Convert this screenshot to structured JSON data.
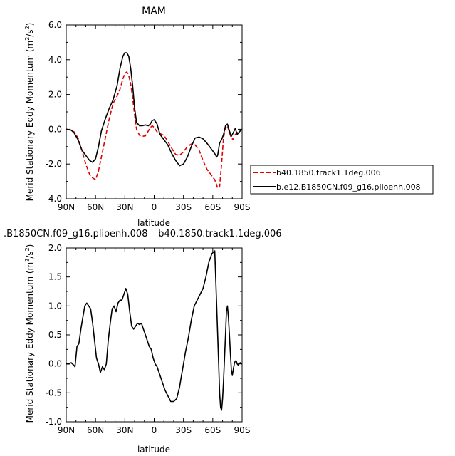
{
  "chart_data": [
    {
      "type": "line",
      "title": "MAM",
      "xlabel": "latitude",
      "ylabel": "Merid Stationary Eddy Momentum (m²/s²)",
      "ylabel_text": "Merid Stationary Eddy Momentum (m",
      "ylabel_unit_close": "/s",
      "xlim": [
        90,
        -90
      ],
      "ylim": [
        -4,
        6
      ],
      "x_tick_values": [
        90,
        60,
        30,
        0,
        -30,
        -60,
        -90
      ],
      "x_tick_labels": [
        "90N",
        "60N",
        "30N",
        "0",
        "30S",
        "60S",
        "90S"
      ],
      "y_tick_values": [
        -4,
        -2,
        0,
        2,
        4,
        6
      ],
      "y_tick_labels": [
        "-4.0",
        "-2.0",
        "0.0",
        "2.0",
        "4.0",
        "6.0"
      ],
      "legend_position": "right",
      "series": [
        {
          "name": "b40.1850.track1.1deg.006",
          "color": "#e00000",
          "dash": "dashed",
          "x": [
            90,
            85,
            82,
            78,
            74,
            70,
            66,
            63,
            60,
            57,
            54,
            50,
            46,
            42,
            38,
            35,
            32,
            30,
            28,
            26,
            24,
            22,
            20,
            18,
            15,
            12,
            9,
            6,
            4,
            2,
            0,
            -3,
            -6,
            -10,
            -14,
            -18,
            -22,
            -26,
            -30,
            -34,
            -38,
            -42,
            -46,
            -50,
            -54,
            -58,
            -62,
            -64,
            -65,
            -67,
            -69,
            -71,
            -73,
            -75,
            -77,
            -79,
            -81,
            -83,
            -85,
            -88,
            -90
          ],
          "y": [
            0,
            -0.05,
            -0.15,
            -0.5,
            -1.2,
            -2.0,
            -2.6,
            -2.8,
            -2.9,
            -2.4,
            -1.6,
            -0.5,
            0.6,
            1.5,
            1.9,
            2.3,
            2.9,
            3.2,
            3.3,
            3.1,
            2.6,
            1.8,
            0.8,
            0.0,
            -0.35,
            -0.4,
            -0.38,
            -0.1,
            0.1,
            0.2,
            0.1,
            -0.15,
            -0.25,
            -0.35,
            -0.7,
            -1.1,
            -1.45,
            -1.5,
            -1.3,
            -1.0,
            -0.85,
            -0.9,
            -1.2,
            -1.8,
            -2.3,
            -2.6,
            -2.9,
            -3.2,
            -3.4,
            -3.3,
            -2.0,
            -0.5,
            0.1,
            0.2,
            -0.2,
            -0.5,
            -0.6,
            -0.3,
            -0.2,
            -0.1,
            0
          ]
        },
        {
          "name": "b.e12.B1850CN.f09_g16.plioenh.008",
          "color": "#000000",
          "dash": "solid",
          "x": [
            90,
            85,
            82,
            78,
            74,
            70,
            66,
            63,
            60,
            57,
            54,
            50,
            46,
            42,
            38,
            35,
            32,
            30,
            28,
            26,
            24,
            22,
            20,
            18,
            15,
            12,
            9,
            6,
            4,
            2,
            0,
            -3,
            -6,
            -10,
            -14,
            -18,
            -22,
            -26,
            -30,
            -34,
            -38,
            -42,
            -46,
            -50,
            -54,
            -58,
            -62,
            -64,
            -65,
            -67,
            -69,
            -71,
            -73,
            -75,
            -77,
            -79,
            -81,
            -83,
            -85,
            -88,
            -90
          ],
          "y": [
            0,
            -0.05,
            -0.2,
            -0.6,
            -1.2,
            -1.5,
            -1.8,
            -1.9,
            -1.7,
            -1.0,
            -0.1,
            0.6,
            1.2,
            1.7,
            2.5,
            3.5,
            4.2,
            4.4,
            4.4,
            4.2,
            3.5,
            2.5,
            1.2,
            0.4,
            0.2,
            0.2,
            0.25,
            0.2,
            0.3,
            0.5,
            0.55,
            0.3,
            -0.3,
            -0.6,
            -0.9,
            -1.4,
            -1.8,
            -2.1,
            -2.0,
            -1.6,
            -1.0,
            -0.5,
            -0.45,
            -0.55,
            -0.8,
            -1.1,
            -1.4,
            -1.6,
            -1.5,
            -0.8,
            -0.6,
            -0.3,
            0.2,
            0.3,
            -0.1,
            -0.4,
            -0.2,
            0.05,
            -0.3,
            -0.1,
            0
          ]
        }
      ]
    },
    {
      "type": "line",
      "title": ".B1850CN.f09_g16.plioenh.008 – b40.1850.track1.1deg.006",
      "xlabel": "latitude",
      "ylabel": "Merid Stationary Eddy Momentum (m²/s²)",
      "ylabel_text": "Merid Stationary Eddy Momentum (m",
      "ylabel_unit_close": "/s",
      "xlim": [
        90,
        -90
      ],
      "ylim": [
        -1,
        2
      ],
      "x_tick_values": [
        90,
        60,
        30,
        0,
        -30,
        -60,
        -90
      ],
      "x_tick_labels": [
        "90N",
        "60N",
        "30N",
        "0",
        "30S",
        "60S",
        "90S"
      ],
      "y_tick_values": [
        -1,
        -0.5,
        0,
        0.5,
        1,
        1.5,
        2
      ],
      "y_tick_labels": [
        "-1.0",
        "-0.5",
        "0.0",
        "0.5",
        "1.0",
        "1.5",
        "2.0"
      ],
      "series": [
        {
          "color": "#000000",
          "dash": "solid",
          "x": [
            90,
            87,
            85,
            83,
            81,
            79,
            77,
            75,
            73,
            71,
            69,
            67,
            65,
            63,
            61,
            59,
            57,
            55,
            53,
            51,
            49,
            47,
            45,
            43,
            41,
            39,
            37,
            35,
            33,
            31,
            29,
            27,
            25,
            23,
            21,
            19,
            17,
            15,
            13,
            11,
            9,
            7,
            5,
            3,
            1,
            -1,
            -3,
            -5,
            -8,
            -11,
            -14,
            -17,
            -20,
            -23,
            -26,
            -28,
            -30,
            -32,
            -35,
            -38,
            -41,
            -44,
            -47,
            -50,
            -53,
            -56,
            -59,
            -62,
            -64,
            -66,
            -67,
            -68,
            -69,
            -70,
            -71,
            -72,
            -73,
            -74,
            -75,
            -76,
            -77,
            -78,
            -79,
            -80,
            -81,
            -82,
            -83,
            -84,
            -85,
            -86,
            -87,
            -88,
            -89,
            -90
          ],
          "y": [
            0,
            0,
            0.02,
            -0.01,
            -0.05,
            0.3,
            0.35,
            0.6,
            0.8,
            1.0,
            1.05,
            1.0,
            0.95,
            0.7,
            0.4,
            0.1,
            0.0,
            -0.15,
            -0.05,
            -0.1,
            0.0,
            0.4,
            0.7,
            0.95,
            1.0,
            0.9,
            1.05,
            1.1,
            1.1,
            1.2,
            1.3,
            1.2,
            0.9,
            0.65,
            0.6,
            0.65,
            0.7,
            0.68,
            0.7,
            0.6,
            0.5,
            0.4,
            0.3,
            0.25,
            0.1,
            0.0,
            -0.05,
            -0.15,
            -0.3,
            -0.45,
            -0.55,
            -0.65,
            -0.65,
            -0.6,
            -0.4,
            -0.2,
            0.0,
            0.2,
            0.45,
            0.75,
            1.0,
            1.1,
            1.2,
            1.3,
            1.5,
            1.75,
            1.9,
            1.95,
            1.0,
            0.0,
            -0.5,
            -0.75,
            -0.8,
            -0.6,
            -0.3,
            0.1,
            0.5,
            0.9,
            1.0,
            0.8,
            0.5,
            0.2,
            -0.1,
            -0.2,
            -0.1,
            0.0,
            0.05,
            0.05,
            0.0,
            -0.02,
            0.0,
            0.02,
            0.0,
            0.0
          ]
        }
      ]
    }
  ]
}
